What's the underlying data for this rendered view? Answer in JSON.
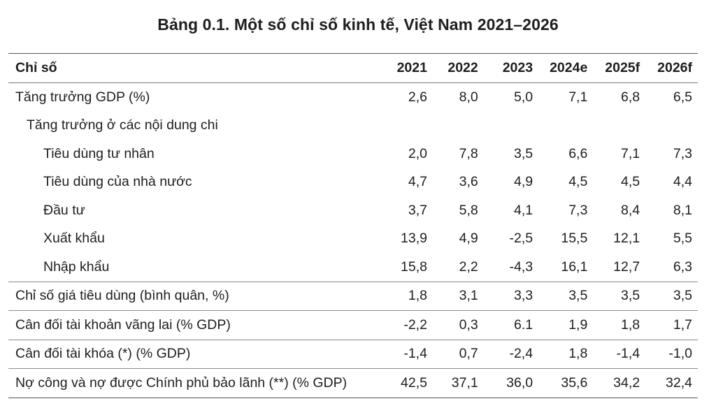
{
  "title": "Bảng 0.1. Một số chỉ số kinh tế, Việt Nam 2021–2026",
  "header": {
    "label": "Chỉ số",
    "years": [
      "2021",
      "2022",
      "2023",
      "2024e",
      "2025f",
      "2026f"
    ]
  },
  "rows": [
    {
      "label": "Tăng trưởng GDP (%)",
      "values": [
        "2,6",
        "8,0",
        "5,0",
        "7,1",
        "6,8",
        "6,5"
      ]
    },
    {
      "label": "Tăng trưởng ở các nội dung chi",
      "values": [
        "",
        "",
        "",
        "",
        "",
        ""
      ]
    },
    {
      "label": "Tiêu dùng tư nhân",
      "values": [
        "2,0",
        "7,8",
        "3,5",
        "6,6",
        "7,1",
        "7,3"
      ]
    },
    {
      "label": "Tiêu dùng của nhà nước",
      "values": [
        "4,7",
        "3,6",
        "4,9",
        "4,5",
        "4,5",
        "4,4"
      ]
    },
    {
      "label": "Đầu tư",
      "values": [
        "3,7",
        "5,8",
        "4,1",
        "7,3",
        "8,4",
        "8,1"
      ]
    },
    {
      "label": "Xuất khẩu",
      "values": [
        "13,9",
        "4,9",
        "-2,5",
        "15,5",
        "12,1",
        "5,5"
      ]
    },
    {
      "label": "Nhập khẩu",
      "values": [
        "15,8",
        "2,2",
        "-4,3",
        "16,1",
        "12,7",
        "6,3"
      ]
    },
    {
      "label": "Chỉ số giá tiêu dùng (bình quân, %)",
      "values": [
        "1,8",
        "3,1",
        "3,3",
        "3,5",
        "3,5",
        "3,5"
      ]
    },
    {
      "label": "Cân đối tài khoản vãng lai (% GDP)",
      "values": [
        "-2,2",
        "0,3",
        "6.1",
        "1,9",
        "1,8",
        "1,7"
      ]
    },
    {
      "label": "Cân đối tài khóa (*) (% GDP)",
      "values": [
        "-1,4",
        "0,7",
        "-2,4",
        "1,8",
        "-1,4",
        "-1,0"
      ]
    },
    {
      "label": "Nợ công và nợ được Chính phủ bảo lãnh (**) (% GDP)",
      "values": [
        "42,5",
        "37,1",
        "36,0",
        "35,6",
        "34,2",
        "32,4"
      ]
    }
  ]
}
